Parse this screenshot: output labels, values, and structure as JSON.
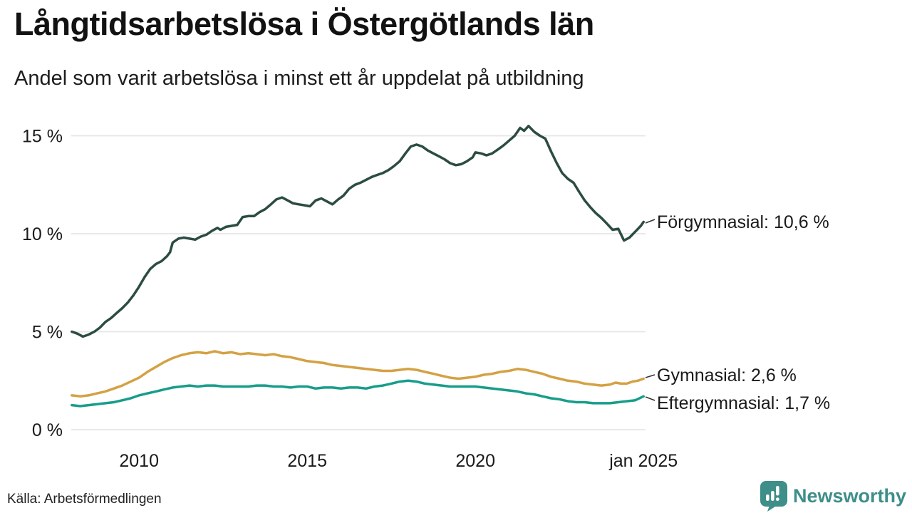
{
  "chart_data": {
    "type": "line",
    "title": "Långtidsarbetslösa i Östergötlands län",
    "subtitle": "Andel som varit arbetslösa i minst ett år uppdelat på utbildning",
    "unit": "%",
    "grid": true,
    "grid_color": "#e8e8e8",
    "xlim": [
      2008,
      2025.1
    ],
    "ylim": [
      0,
      16.2
    ],
    "legend_position": "end-of-line labels",
    "x_ticks": [
      {
        "label": "2010",
        "x": 2010
      },
      {
        "label": "2015",
        "x": 2015
      },
      {
        "label": "2020",
        "x": 2020
      },
      {
        "label": "jan 2025",
        "x": 2025
      }
    ],
    "y_ticks": [
      {
        "label": "15 %",
        "y": 15
      },
      {
        "label": "10 %",
        "y": 10
      },
      {
        "label": "5 %",
        "y": 5
      },
      {
        "label": "0 %",
        "y": 0
      }
    ],
    "series": [
      {
        "id": "forgymnasial",
        "name": "Förgymnasial",
        "end_value": "10,6 %",
        "end_label": "Förgymnasial: 10,6 %",
        "color": "#2b4c43",
        "points": [
          [
            2008,
            5
          ],
          [
            2008.17,
            4.9
          ],
          [
            2008.33,
            4.75
          ],
          [
            2008.5,
            4.85
          ],
          [
            2008.67,
            5
          ],
          [
            2008.83,
            5.2
          ],
          [
            2009,
            5.5
          ],
          [
            2009.17,
            5.7
          ],
          [
            2009.33,
            5.95
          ],
          [
            2009.5,
            6.2
          ],
          [
            2009.67,
            6.5
          ],
          [
            2009.83,
            6.85
          ],
          [
            2010,
            7.3
          ],
          [
            2010.17,
            7.8
          ],
          [
            2010.33,
            8.2
          ],
          [
            2010.5,
            8.45
          ],
          [
            2010.67,
            8.6
          ],
          [
            2010.83,
            8.85
          ],
          [
            2010.92,
            9.05
          ],
          [
            2011,
            9.55
          ],
          [
            2011.17,
            9.75
          ],
          [
            2011.33,
            9.8
          ],
          [
            2011.5,
            9.75
          ],
          [
            2011.67,
            9.7
          ],
          [
            2011.83,
            9.85
          ],
          [
            2012,
            9.95
          ],
          [
            2012.17,
            10.15
          ],
          [
            2012.33,
            10.3
          ],
          [
            2012.42,
            10.2
          ],
          [
            2012.58,
            10.35
          ],
          [
            2012.75,
            10.4
          ],
          [
            2012.92,
            10.45
          ],
          [
            2013.08,
            10.85
          ],
          [
            2013.25,
            10.9
          ],
          [
            2013.42,
            10.9
          ],
          [
            2013.58,
            11.1
          ],
          [
            2013.75,
            11.25
          ],
          [
            2013.92,
            11.5
          ],
          [
            2014.08,
            11.75
          ],
          [
            2014.25,
            11.85
          ],
          [
            2014.42,
            11.7
          ],
          [
            2014.58,
            11.55
          ],
          [
            2014.75,
            11.5
          ],
          [
            2014.92,
            11.45
          ],
          [
            2015.08,
            11.4
          ],
          [
            2015.25,
            11.7
          ],
          [
            2015.42,
            11.8
          ],
          [
            2015.58,
            11.65
          ],
          [
            2015.75,
            11.5
          ],
          [
            2015.92,
            11.75
          ],
          [
            2016.08,
            11.95
          ],
          [
            2016.25,
            12.3
          ],
          [
            2016.42,
            12.5
          ],
          [
            2016.58,
            12.6
          ],
          [
            2016.75,
            12.75
          ],
          [
            2016.92,
            12.9
          ],
          [
            2017.08,
            13
          ],
          [
            2017.25,
            13.1
          ],
          [
            2017.42,
            13.25
          ],
          [
            2017.58,
            13.45
          ],
          [
            2017.75,
            13.7
          ],
          [
            2017.92,
            14.1
          ],
          [
            2018.08,
            14.45
          ],
          [
            2018.25,
            14.55
          ],
          [
            2018.42,
            14.45
          ],
          [
            2018.58,
            14.25
          ],
          [
            2018.75,
            14.1
          ],
          [
            2018.92,
            13.95
          ],
          [
            2019.08,
            13.8
          ],
          [
            2019.25,
            13.6
          ],
          [
            2019.42,
            13.5
          ],
          [
            2019.58,
            13.55
          ],
          [
            2019.75,
            13.7
          ],
          [
            2019.92,
            13.9
          ],
          [
            2020,
            14.15
          ],
          [
            2020.17,
            14.1
          ],
          [
            2020.33,
            14
          ],
          [
            2020.5,
            14.1
          ],
          [
            2020.67,
            14.3
          ],
          [
            2020.83,
            14.5
          ],
          [
            2021,
            14.75
          ],
          [
            2021.17,
            15
          ],
          [
            2021.33,
            15.4
          ],
          [
            2021.45,
            15.25
          ],
          [
            2021.58,
            15.5
          ],
          [
            2021.75,
            15.2
          ],
          [
            2021.92,
            15
          ],
          [
            2022.08,
            14.85
          ],
          [
            2022.25,
            14.2
          ],
          [
            2022.42,
            13.6
          ],
          [
            2022.58,
            13.1
          ],
          [
            2022.75,
            12.8
          ],
          [
            2022.92,
            12.6
          ],
          [
            2023.08,
            12.15
          ],
          [
            2023.25,
            11.7
          ],
          [
            2023.42,
            11.35
          ],
          [
            2023.58,
            11.05
          ],
          [
            2023.75,
            10.8
          ],
          [
            2023.92,
            10.5
          ],
          [
            2024.08,
            10.2
          ],
          [
            2024.25,
            10.25
          ],
          [
            2024.42,
            9.65
          ],
          [
            2024.58,
            9.8
          ],
          [
            2024.75,
            10.1
          ],
          [
            2024.92,
            10.4
          ],
          [
            2025,
            10.6
          ]
        ]
      },
      {
        "id": "gymnasial",
        "name": "Gymnasial",
        "end_value": "2,6 %",
        "end_label": "Gymnasial:  2,6 %",
        "color": "#d4a144",
        "points": [
          [
            2008,
            1.75
          ],
          [
            2008.25,
            1.7
          ],
          [
            2008.5,
            1.75
          ],
          [
            2008.75,
            1.85
          ],
          [
            2009,
            1.95
          ],
          [
            2009.25,
            2.1
          ],
          [
            2009.5,
            2.25
          ],
          [
            2009.75,
            2.45
          ],
          [
            2010,
            2.65
          ],
          [
            2010.25,
            2.95
          ],
          [
            2010.5,
            3.2
          ],
          [
            2010.75,
            3.45
          ],
          [
            2011,
            3.65
          ],
          [
            2011.25,
            3.8
          ],
          [
            2011.5,
            3.9
          ],
          [
            2011.75,
            3.95
          ],
          [
            2012,
            3.9
          ],
          [
            2012.25,
            4
          ],
          [
            2012.5,
            3.9
          ],
          [
            2012.75,
            3.95
          ],
          [
            2013,
            3.85
          ],
          [
            2013.25,
            3.9
          ],
          [
            2013.5,
            3.85
          ],
          [
            2013.75,
            3.8
          ],
          [
            2014,
            3.85
          ],
          [
            2014.25,
            3.75
          ],
          [
            2014.5,
            3.7
          ],
          [
            2014.75,
            3.6
          ],
          [
            2015,
            3.5
          ],
          [
            2015.25,
            3.45
          ],
          [
            2015.5,
            3.4
          ],
          [
            2015.75,
            3.3
          ],
          [
            2016,
            3.25
          ],
          [
            2016.25,
            3.2
          ],
          [
            2016.5,
            3.15
          ],
          [
            2016.75,
            3.1
          ],
          [
            2017,
            3.05
          ],
          [
            2017.25,
            3
          ],
          [
            2017.5,
            3
          ],
          [
            2017.75,
            3.05
          ],
          [
            2018,
            3.1
          ],
          [
            2018.25,
            3.05
          ],
          [
            2018.5,
            2.95
          ],
          [
            2018.75,
            2.85
          ],
          [
            2019,
            2.75
          ],
          [
            2019.25,
            2.65
          ],
          [
            2019.5,
            2.6
          ],
          [
            2019.75,
            2.65
          ],
          [
            2020,
            2.7
          ],
          [
            2020.25,
            2.8
          ],
          [
            2020.5,
            2.85
          ],
          [
            2020.75,
            2.95
          ],
          [
            2021,
            3
          ],
          [
            2021.25,
            3.1
          ],
          [
            2021.5,
            3.05
          ],
          [
            2021.75,
            2.95
          ],
          [
            2022,
            2.85
          ],
          [
            2022.25,
            2.7
          ],
          [
            2022.5,
            2.6
          ],
          [
            2022.75,
            2.5
          ],
          [
            2023,
            2.45
          ],
          [
            2023.25,
            2.35
          ],
          [
            2023.5,
            2.3
          ],
          [
            2023.75,
            2.25
          ],
          [
            2024,
            2.3
          ],
          [
            2024.17,
            2.4
          ],
          [
            2024.33,
            2.35
          ],
          [
            2024.5,
            2.35
          ],
          [
            2024.67,
            2.45
          ],
          [
            2024.83,
            2.5
          ],
          [
            2025,
            2.6
          ]
        ]
      },
      {
        "id": "eftergymnasial",
        "name": "Eftergymnasial",
        "end_value": "1,7 %",
        "end_label": "Eftergymnasial:  1,7 %",
        "color": "#189d8b",
        "points": [
          [
            2008,
            1.25
          ],
          [
            2008.25,
            1.2
          ],
          [
            2008.5,
            1.25
          ],
          [
            2008.75,
            1.3
          ],
          [
            2009,
            1.35
          ],
          [
            2009.25,
            1.4
          ],
          [
            2009.5,
            1.5
          ],
          [
            2009.75,
            1.6
          ],
          [
            2010,
            1.75
          ],
          [
            2010.25,
            1.85
          ],
          [
            2010.5,
            1.95
          ],
          [
            2010.75,
            2.05
          ],
          [
            2011,
            2.15
          ],
          [
            2011.25,
            2.2
          ],
          [
            2011.5,
            2.25
          ],
          [
            2011.75,
            2.2
          ],
          [
            2012,
            2.25
          ],
          [
            2012.25,
            2.25
          ],
          [
            2012.5,
            2.2
          ],
          [
            2012.75,
            2.2
          ],
          [
            2013,
            2.2
          ],
          [
            2013.25,
            2.2
          ],
          [
            2013.5,
            2.25
          ],
          [
            2013.75,
            2.25
          ],
          [
            2014,
            2.2
          ],
          [
            2014.25,
            2.2
          ],
          [
            2014.5,
            2.15
          ],
          [
            2014.75,
            2.2
          ],
          [
            2015,
            2.2
          ],
          [
            2015.25,
            2.1
          ],
          [
            2015.5,
            2.15
          ],
          [
            2015.75,
            2.15
          ],
          [
            2016,
            2.1
          ],
          [
            2016.25,
            2.15
          ],
          [
            2016.5,
            2.15
          ],
          [
            2016.75,
            2.1
          ],
          [
            2017,
            2.2
          ],
          [
            2017.25,
            2.25
          ],
          [
            2017.5,
            2.35
          ],
          [
            2017.75,
            2.45
          ],
          [
            2018,
            2.5
          ],
          [
            2018.25,
            2.45
          ],
          [
            2018.5,
            2.35
          ],
          [
            2018.75,
            2.3
          ],
          [
            2019,
            2.25
          ],
          [
            2019.25,
            2.2
          ],
          [
            2019.5,
            2.2
          ],
          [
            2019.75,
            2.2
          ],
          [
            2020,
            2.2
          ],
          [
            2020.25,
            2.15
          ],
          [
            2020.5,
            2.1
          ],
          [
            2020.75,
            2.05
          ],
          [
            2021,
            2
          ],
          [
            2021.25,
            1.95
          ],
          [
            2021.5,
            1.85
          ],
          [
            2021.75,
            1.8
          ],
          [
            2022,
            1.7
          ],
          [
            2022.25,
            1.6
          ],
          [
            2022.5,
            1.55
          ],
          [
            2022.75,
            1.45
          ],
          [
            2023,
            1.4
          ],
          [
            2023.25,
            1.4
          ],
          [
            2023.5,
            1.35
          ],
          [
            2023.75,
            1.35
          ],
          [
            2024,
            1.35
          ],
          [
            2024.25,
            1.4
          ],
          [
            2024.5,
            1.45
          ],
          [
            2024.75,
            1.5
          ],
          [
            2025,
            1.7
          ]
        ]
      }
    ]
  },
  "footer": {
    "source": "Källa: Arbetsförmedlingen",
    "brand": "Newsworthy",
    "brand_color": "#3e8e89"
  }
}
